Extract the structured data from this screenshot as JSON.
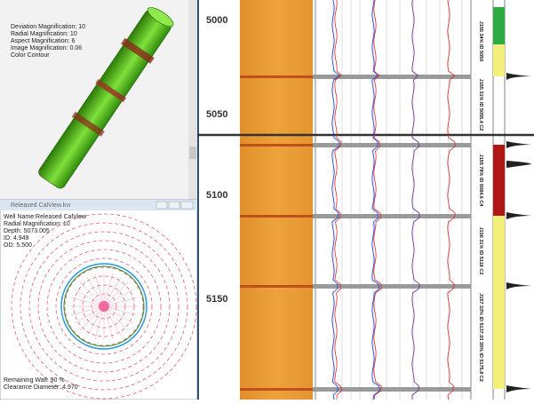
{
  "view3d": {
    "lines": [
      "Deviation Magnification: 10",
      "Radial Magnification: 10",
      "Aspect Magnification: 6",
      "Image Magnification: 0.06",
      "Color Contour"
    ]
  },
  "calview": {
    "title": "Released CalView.kvi",
    "info": [
      "Well Name:Released CalView",
      "Radial Magnification: 10",
      "Depth: 5073.005",
      "ID: 4.949",
      "OD: 5.500"
    ],
    "footer": [
      "Remaining Wall: 90 %",
      "Clearance Diameter: 4.970"
    ]
  },
  "depth_track": {
    "labels": [
      "5000",
      "5050",
      "5100",
      "5150"
    ]
  },
  "joints": [
    "J155 34% ID 5056",
    "J155 31% ID 5055.4 C2",
    "J155 78% ID 5084.6 C4",
    "J156 31% ID 5118 C2",
    "J157 33% ID 5137.03 35% ID 5175.8 C2"
  ]
}
